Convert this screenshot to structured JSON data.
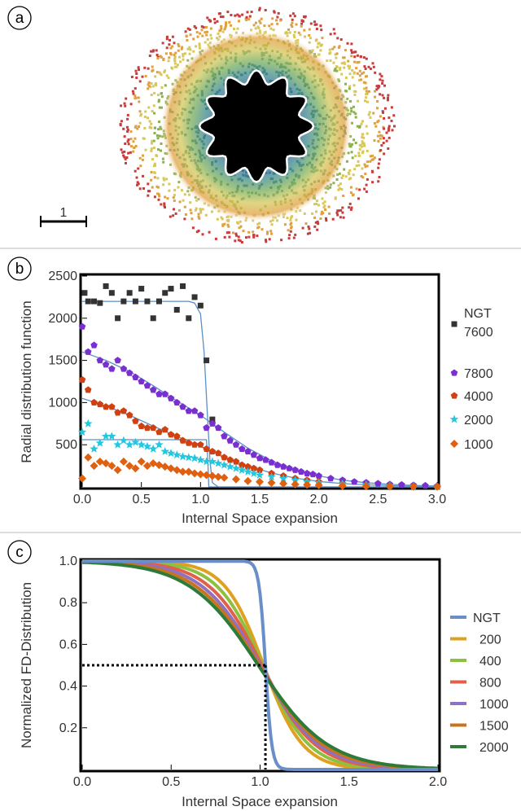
{
  "panels": {
    "a": {
      "label": "a",
      "scale_bar_label": "1"
    },
    "b": {
      "label": "b"
    },
    "c": {
      "label": "c"
    }
  },
  "chart_data": [
    {
      "panel": "b",
      "type": "scatter",
      "xlabel": "Internal Space expansion",
      "ylabel": "Radial distribution function",
      "xlim": [
        0,
        3.0
      ],
      "ylim": [
        0,
        2500
      ],
      "x_ticks": [
        "0.0",
        "0.5",
        "1.0",
        "1.5",
        "2.0",
        "2.5",
        "3.0"
      ],
      "y_ticks": [
        "500",
        "1000",
        "1500",
        "2000",
        "2500"
      ],
      "legend": {
        "placement": "right",
        "entries": [
          {
            "name": "NGT",
            "name2": "7600",
            "marker": "square",
            "color": "#333333"
          },
          {
            "name": "7800",
            "marker": "pentagon",
            "color": "#7a2fd0"
          },
          {
            "name": "4000",
            "marker": "pentagon",
            "color": "#d04010"
          },
          {
            "name": "2000",
            "marker": "star",
            "color": "#22c8e0"
          },
          {
            "name": "1000",
            "marker": "diamond",
            "color": "#e06010"
          }
        ]
      },
      "series": [
        {
          "name": "NGT 7600",
          "marker": "square",
          "color": "#333333",
          "x": [
            0.02,
            0.05,
            0.1,
            0.15,
            0.2,
            0.25,
            0.3,
            0.35,
            0.4,
            0.45,
            0.5,
            0.55,
            0.6,
            0.65,
            0.7,
            0.75,
            0.8,
            0.85,
            0.9,
            0.95,
            1.0,
            1.05,
            1.1
          ],
          "y": [
            2300,
            2200,
            2200,
            2180,
            2380,
            2300,
            2000,
            2200,
            2300,
            2200,
            2350,
            2200,
            2000,
            2200,
            2300,
            2350,
            2100,
            2380,
            2000,
            2250,
            2150,
            1500,
            800
          ],
          "fit": [
            [
              0,
              2200
            ],
            [
              0.9,
              2200
            ],
            [
              0.95,
              2180
            ],
            [
              1.0,
              2050
            ],
            [
              1.03,
              1600
            ],
            [
              1.06,
              800
            ],
            [
              1.08,
              300
            ],
            [
              1.1,
              50
            ],
            [
              1.15,
              0
            ],
            [
              3.0,
              0
            ]
          ]
        },
        {
          "name": "7800",
          "marker": "pentagon",
          "color": "#7a2fd0",
          "x": [
            0.0,
            0.05,
            0.1,
            0.15,
            0.2,
            0.25,
            0.3,
            0.35,
            0.4,
            0.45,
            0.5,
            0.55,
            0.6,
            0.65,
            0.7,
            0.75,
            0.8,
            0.85,
            0.9,
            0.95,
            1.0,
            1.05,
            1.1,
            1.15,
            1.2,
            1.25,
            1.3,
            1.35,
            1.4,
            1.45,
            1.5,
            1.55,
            1.6,
            1.65,
            1.7,
            1.75,
            1.8,
            1.85,
            1.9,
            1.95,
            2.0,
            2.1,
            2.2,
            2.3,
            2.4,
            2.5,
            2.6,
            2.7,
            2.8,
            2.9,
            3.0
          ],
          "y": [
            1900,
            1600,
            1680,
            1500,
            1450,
            1400,
            1500,
            1400,
            1350,
            1300,
            1250,
            1200,
            1150,
            1100,
            1100,
            1050,
            1000,
            950,
            900,
            900,
            850,
            700,
            750,
            700,
            600,
            550,
            500,
            450,
            420,
            380,
            340,
            320,
            290,
            260,
            240,
            220,
            200,
            180,
            160,
            150,
            130,
            100,
            80,
            60,
            50,
            40,
            30,
            25,
            20,
            15,
            10
          ],
          "fit": [
            [
              0,
              1600
            ],
            [
              0.2,
              1500
            ],
            [
              0.4,
              1370
            ],
            [
              0.6,
              1200
            ],
            [
              0.8,
              1020
            ],
            [
              1.0,
              850
            ],
            [
              1.2,
              650
            ],
            [
              1.4,
              460
            ],
            [
              1.6,
              310
            ],
            [
              1.8,
              200
            ],
            [
              2.0,
              130
            ],
            [
              2.2,
              80
            ],
            [
              2.4,
              50
            ],
            [
              2.6,
              30
            ],
            [
              2.8,
              18
            ],
            [
              3.0,
              10
            ]
          ]
        },
        {
          "name": "4000",
          "marker": "pentagon",
          "color": "#d04010",
          "x": [
            0.0,
            0.05,
            0.1,
            0.15,
            0.2,
            0.25,
            0.3,
            0.35,
            0.4,
            0.45,
            0.5,
            0.55,
            0.6,
            0.65,
            0.7,
            0.75,
            0.8,
            0.85,
            0.9,
            0.95,
            1.0,
            1.05,
            1.1,
            1.15,
            1.2,
            1.25,
            1.3,
            1.35,
            1.4,
            1.45,
            1.5,
            1.6,
            1.7,
            1.8,
            1.9,
            2.0,
            2.2,
            2.4,
            2.6,
            2.8,
            3.0
          ],
          "y": [
            1270,
            1150,
            1000,
            980,
            950,
            950,
            880,
            900,
            850,
            780,
            720,
            700,
            700,
            650,
            680,
            620,
            600,
            550,
            520,
            500,
            500,
            450,
            420,
            400,
            350,
            320,
            300,
            260,
            240,
            220,
            200,
            160,
            130,
            100,
            80,
            60,
            40,
            25,
            15,
            10,
            5
          ],
          "fit": [
            [
              0,
              1050
            ],
            [
              0.2,
              960
            ],
            [
              0.4,
              850
            ],
            [
              0.6,
              720
            ],
            [
              0.8,
              600
            ],
            [
              1.0,
              480
            ],
            [
              1.2,
              360
            ],
            [
              1.4,
              250
            ],
            [
              1.6,
              165
            ],
            [
              1.8,
              105
            ],
            [
              2.0,
              65
            ],
            [
              2.2,
              40
            ],
            [
              2.4,
              25
            ],
            [
              2.6,
              15
            ],
            [
              2.8,
              9
            ],
            [
              3.0,
              5
            ]
          ]
        },
        {
          "name": "2000",
          "marker": "star",
          "color": "#22c8e0",
          "x": [
            0.0,
            0.05,
            0.1,
            0.15,
            0.2,
            0.25,
            0.3,
            0.35,
            0.4,
            0.45,
            0.5,
            0.55,
            0.6,
            0.65,
            0.7,
            0.75,
            0.8,
            0.85,
            0.9,
            0.95,
            1.0,
            1.05,
            1.1,
            1.15,
            1.2,
            1.25,
            1.3,
            1.35,
            1.4,
            1.45,
            1.5,
            1.6,
            1.7,
            1.8,
            1.9,
            2.0,
            2.2,
            2.4,
            2.6,
            2.8,
            3.0
          ],
          "y": [
            650,
            750,
            450,
            520,
            600,
            600,
            500,
            550,
            500,
            530,
            500,
            480,
            450,
            500,
            420,
            400,
            380,
            360,
            350,
            340,
            320,
            300,
            300,
            280,
            260,
            240,
            220,
            200,
            180,
            160,
            140,
            120,
            100,
            80,
            60,
            50,
            35,
            25,
            15,
            10,
            5
          ],
          "fit": [
            [
              0,
              560
            ],
            [
              1.05,
              560
            ],
            [
              1.06,
              350
            ],
            [
              1.07,
              0
            ],
            [
              3.0,
              0
            ]
          ]
        },
        {
          "name": "1000",
          "marker": "diamond",
          "color": "#e06010",
          "x": [
            0.0,
            0.05,
            0.1,
            0.15,
            0.2,
            0.25,
            0.3,
            0.35,
            0.4,
            0.45,
            0.5,
            0.55,
            0.6,
            0.65,
            0.7,
            0.75,
            0.8,
            0.85,
            0.9,
            0.95,
            1.0,
            1.05,
            1.1,
            1.15,
            1.2,
            1.3,
            1.4,
            1.5,
            1.6,
            1.7,
            1.8,
            1.9,
            2.0,
            2.2,
            2.4,
            2.6,
            2.8,
            3.0
          ],
          "y": [
            100,
            350,
            250,
            300,
            280,
            250,
            200,
            300,
            250,
            220,
            300,
            250,
            280,
            260,
            240,
            220,
            200,
            180,
            180,
            160,
            150,
            140,
            130,
            120,
            110,
            90,
            70,
            60,
            50,
            40,
            30,
            25,
            20,
            12,
            8,
            5,
            3,
            2
          ],
          "fit": []
        }
      ]
    },
    {
      "panel": "c",
      "type": "line",
      "xlabel": "Internal Space expansion",
      "ylabel": "Normalized FD-Distribution",
      "xlim": [
        0,
        2.0
      ],
      "ylim": [
        0,
        1.0
      ],
      "x_ticks": [
        "0.0",
        "0.5",
        "1.0",
        "1.5",
        "2.0"
      ],
      "y_ticks": [
        "0.2",
        "0.4",
        "0.6",
        "0.8",
        "1.0"
      ],
      "annotation": {
        "crossing_x": 1.03,
        "crossing_y": 0.5,
        "style": "dotted"
      },
      "legend": {
        "placement": "right"
      },
      "series": [
        {
          "name": "NGT",
          "color": "#6a8fc8",
          "mu": 1.03,
          "s": 0.018
        },
        {
          "name": "200",
          "color": "#e0a020",
          "mu": 1.02,
          "s": 0.11
        },
        {
          "name": "400",
          "color": "#8cc040",
          "mu": 1.015,
          "s": 0.13
        },
        {
          "name": "800",
          "color": "#e06048",
          "mu": 1.01,
          "s": 0.15
        },
        {
          "name": "1000",
          "color": "#9070c0",
          "mu": 1.0,
          "s": 0.165
        },
        {
          "name": "1500",
          "color": "#c8741c",
          "mu": 0.995,
          "s": 0.18
        },
        {
          "name": "2000",
          "color": "#2d7a3a",
          "mu": 0.99,
          "s": 0.195
        }
      ]
    }
  ]
}
